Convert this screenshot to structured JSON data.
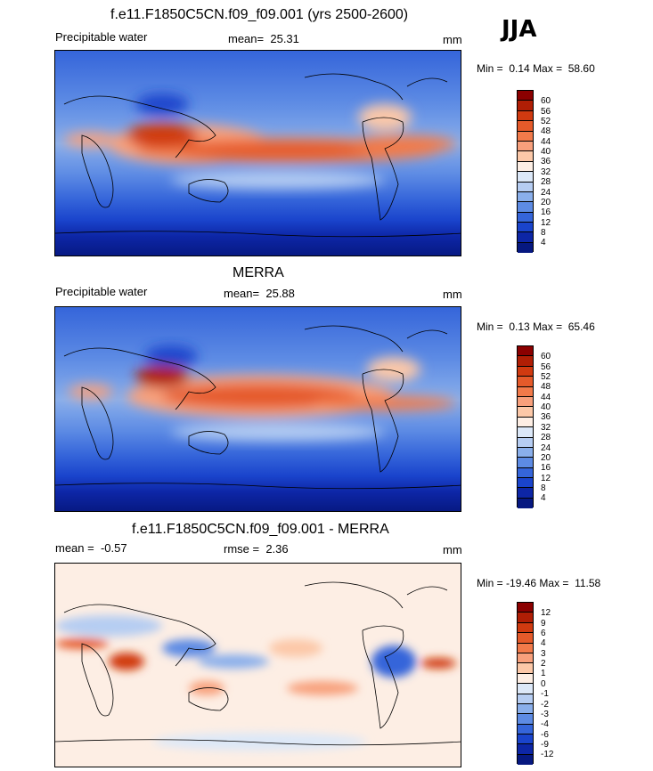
{
  "season": "JJA",
  "panels": [
    {
      "title": "f.e11.F1850C5CN.f09_f09.001 (yrs 2500-2600)",
      "left_label": "Precipitable water",
      "mean_label": "mean=",
      "mean_value": "25.31",
      "units": "mm",
      "min_label": "Min =",
      "min_value": "0.14",
      "max_label": "Max =",
      "max_value": "58.60",
      "colorbar": {
        "labels": [
          "60",
          "56",
          "52",
          "48",
          "44",
          "40",
          "36",
          "32",
          "28",
          "24",
          "20",
          "16",
          "12",
          "8",
          "4"
        ],
        "colors": [
          "#8b0000",
          "#b01e05",
          "#d03a10",
          "#e55a2a",
          "#f27a4a",
          "#f8a07c",
          "#fcc8a8",
          "#fdeee4",
          "#dce8f8",
          "#b6cdf2",
          "#8aafeb",
          "#5d8be4",
          "#3565da",
          "#1a44cc",
          "#0d26a6",
          "#061880"
        ]
      }
    },
    {
      "title": "MERRA",
      "left_label": "Precipitable water",
      "mean_label": "mean=",
      "mean_value": "25.88",
      "units": "mm",
      "min_label": "Min =",
      "min_value": "0.13",
      "max_label": "Max =",
      "max_value": "65.46",
      "colorbar": {
        "labels": [
          "60",
          "56",
          "52",
          "48",
          "44",
          "40",
          "36",
          "32",
          "28",
          "24",
          "20",
          "16",
          "12",
          "8",
          "4"
        ],
        "colors": [
          "#8b0000",
          "#b01e05",
          "#d03a10",
          "#e55a2a",
          "#f27a4a",
          "#f8a07c",
          "#fcc8a8",
          "#fdeee4",
          "#dce8f8",
          "#b6cdf2",
          "#8aafeb",
          "#5d8be4",
          "#3565da",
          "#1a44cc",
          "#0d26a6",
          "#061880"
        ]
      }
    },
    {
      "title": "f.e11.F1850C5CN.f09_f09.001 - MERRA",
      "left_label": "mean =",
      "left_value": "-0.57",
      "rmse_label": "rmse =",
      "rmse_value": "2.36",
      "units": "mm",
      "min_label": "Min =",
      "min_value": "-19.46",
      "max_label": "Max =",
      "max_value": "11.58",
      "colorbar": {
        "labels": [
          "12",
          "9",
          "6",
          "4",
          "3",
          "2",
          "1",
          "0",
          "-1",
          "-2",
          "-3",
          "-4",
          "-6",
          "-9",
          "-12"
        ],
        "colors": [
          "#8b0000",
          "#b01e05",
          "#d03a10",
          "#e55a2a",
          "#f27a4a",
          "#f8a07c",
          "#fcc8a8",
          "#fdeee4",
          "#dce8f8",
          "#b6cdf2",
          "#8aafeb",
          "#5d8be4",
          "#3565da",
          "#1a44cc",
          "#0d26a6",
          "#061880"
        ]
      }
    }
  ]
}
